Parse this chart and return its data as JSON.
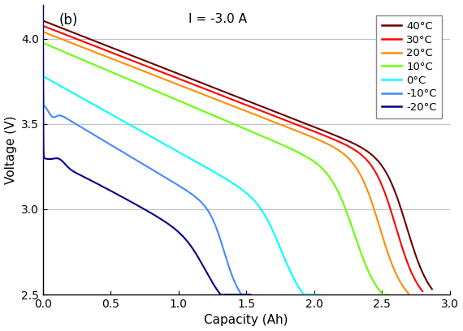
{
  "title_annotation": "(b)",
  "current_label": "I = -3.0 A",
  "xlabel": "Capacity (Ah)",
  "ylabel": "Voltage (V)",
  "xlim": [
    0,
    3
  ],
  "ylim": [
    2.5,
    4.2
  ],
  "xticks": [
    0,
    0.5,
    1.0,
    1.5,
    2.0,
    2.5,
    3.0
  ],
  "yticks": [
    2.5,
    3.0,
    3.5,
    4.0
  ],
  "grid_color": "#c0c0c0",
  "background_color": "#ffffff",
  "temperatures": [
    "40°C",
    "30°C",
    "20°C",
    "10°C",
    "0°C",
    "-10°C",
    "-20°C"
  ],
  "colors": [
    "#6B0000",
    "#FF0000",
    "#FF8C00",
    "#66FF00",
    "#00FFFF",
    "#4488FF",
    "#00008B"
  ],
  "linewidth": 1.5
}
